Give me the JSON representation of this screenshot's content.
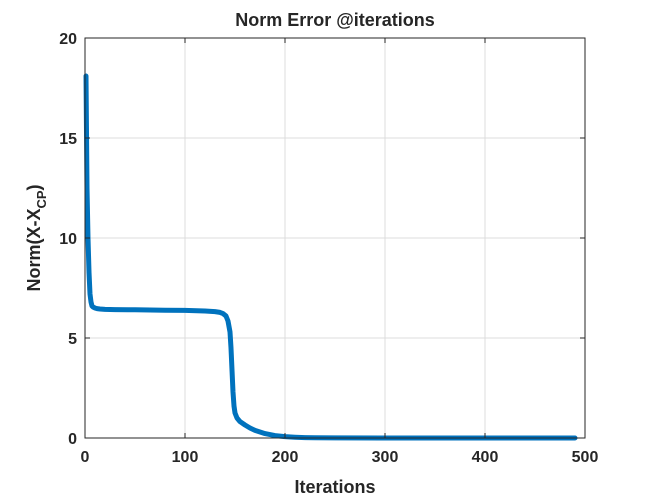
{
  "chart_data": {
    "type": "line",
    "title": "Norm Error @iterations",
    "xlabel": "Iterations",
    "ylabel": {
      "main": "Norm(X-X",
      "subscript": "CP",
      "close": ")"
    },
    "xlim": [
      0,
      500
    ],
    "ylim": [
      0,
      20
    ],
    "xticks": [
      0,
      100,
      200,
      300,
      400,
      500
    ],
    "yticks": [
      0,
      5,
      10,
      15,
      20
    ],
    "grid": true,
    "legend": "none",
    "series": [
      {
        "color": "#0072BD",
        "x": [
          1,
          2,
          3,
          4,
          5,
          6,
          7,
          8,
          10,
          12,
          15,
          20,
          30,
          50,
          80,
          100,
          120,
          130,
          135,
          138,
          141,
          143,
          145,
          146,
          147,
          148,
          149,
          150,
          152,
          155,
          160,
          165,
          170,
          180,
          190,
          200,
          210,
          220,
          230,
          250,
          300,
          350,
          400,
          450,
          490
        ],
        "y": [
          18.1,
          12.5,
          10.0,
          8.3,
          7.2,
          6.8,
          6.6,
          6.55,
          6.5,
          6.47,
          6.45,
          6.43,
          6.42,
          6.41,
          6.39,
          6.38,
          6.35,
          6.32,
          6.28,
          6.22,
          6.1,
          5.85,
          5.3,
          4.5,
          3.4,
          2.3,
          1.6,
          1.25,
          1.0,
          0.82,
          0.65,
          0.5,
          0.38,
          0.22,
          0.12,
          0.07,
          0.04,
          0.02,
          0.01,
          0.005,
          0.002,
          0.001,
          0.001,
          0.001,
          0.001
        ]
      }
    ]
  }
}
